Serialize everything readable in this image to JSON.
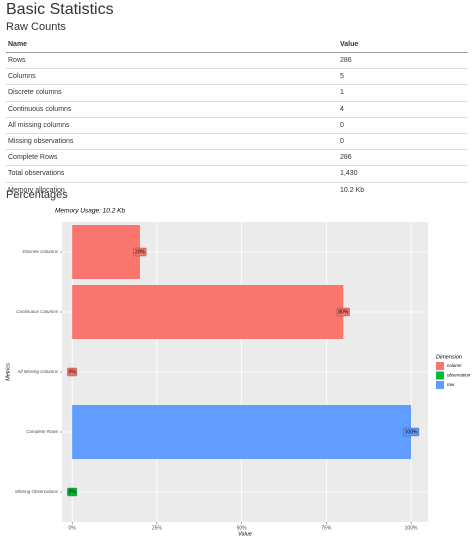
{
  "header": {
    "title": "Basic Statistics",
    "subtitle": "Raw Counts"
  },
  "table": {
    "columns": [
      "Name",
      "Value"
    ],
    "rows": [
      [
        "Rows",
        "286"
      ],
      [
        "Columns",
        "5"
      ],
      [
        "Discrete columns",
        "1"
      ],
      [
        "Continuous columns",
        "4"
      ],
      [
        "All missing columns",
        "0"
      ],
      [
        "Missing observations",
        "0"
      ],
      [
        "Complete Rows",
        "286"
      ],
      [
        "Total observations",
        "1,430"
      ],
      [
        "Memory allocation",
        "10.2 Kb"
      ]
    ]
  },
  "section": {
    "title": "Percentages"
  },
  "chart_data": {
    "type": "hbar",
    "title": "Memory Usage: 10.2 Kb",
    "x_label": "Value",
    "y_label": "Metrics",
    "categories": [
      "Discrete Columns",
      "Continuous Columns",
      "All Missing Columns",
      "Complete Rows",
      "Missing Observations"
    ],
    "series": [
      {
        "name": "column",
        "color": "#f8766d",
        "values": [
          20,
          80,
          0,
          null,
          null
        ],
        "value_labels": [
          "20%",
          "80%",
          "0%",
          null,
          null
        ]
      },
      {
        "name": "observation",
        "color": "#00ba38",
        "values": [
          null,
          null,
          null,
          null,
          0
        ],
        "value_labels": [
          null,
          null,
          null,
          null,
          "0%"
        ]
      },
      {
        "name": "row",
        "color": "#619cff",
        "values": [
          null,
          null,
          null,
          100,
          null
        ],
        "value_labels": [
          null,
          null,
          null,
          "100%",
          null
        ]
      }
    ],
    "xlim": [
      -3,
      105
    ],
    "xticks": [
      {
        "value": 0,
        "label": "0%"
      },
      {
        "value": 25,
        "label": "25%"
      },
      {
        "value": 50,
        "label": "50%"
      },
      {
        "value": 75,
        "label": "75%"
      },
      {
        "value": 100,
        "label": "100%"
      }
    ],
    "legend_title": "Dimension",
    "legend": "right",
    "grid": true
  }
}
